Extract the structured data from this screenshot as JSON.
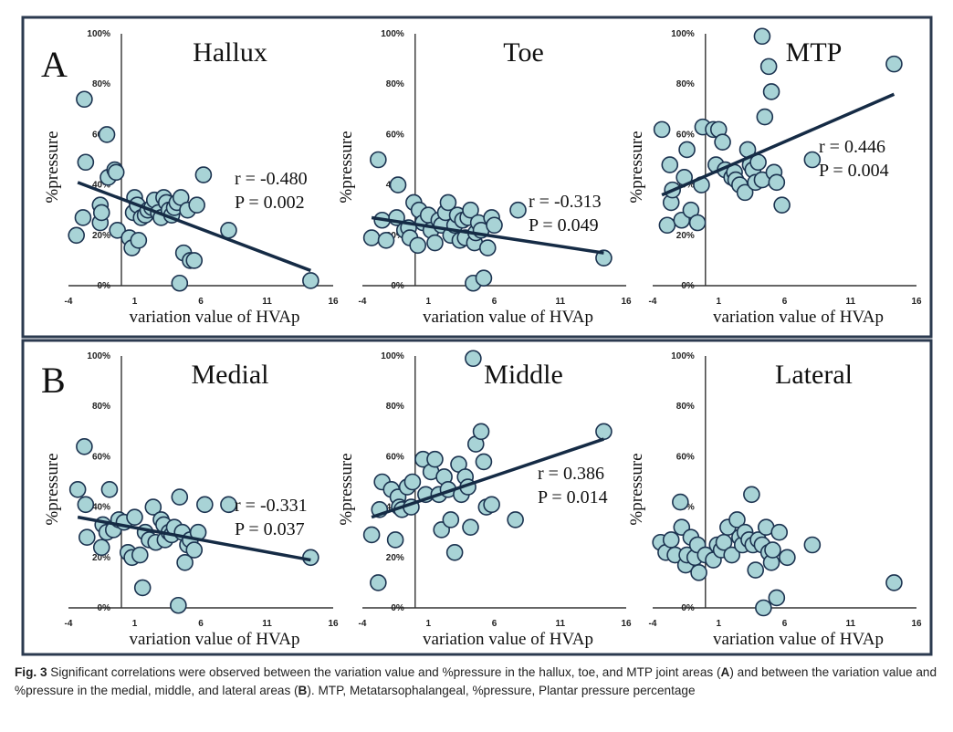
{
  "caption": {
    "fig_label": "Fig. 3",
    "text_1": "  Significant correlations were observed between the variation value and %pressure in the hallux, toe, and MTP joint areas (",
    "ref_a": "A",
    "text_2": ") and between the variation value and %pressure in the medial, middle, and lateral areas (",
    "ref_b": "B",
    "text_3": "). MTP, Metatarsophalangeal, %pressure, Plantar pressure percentage"
  },
  "panel_letters": [
    "A",
    "B"
  ],
  "colors": {
    "marker_fill": "#a8d3d6",
    "marker_edge": "#1c3350",
    "line": "#152b45",
    "frame": "#2b3a4f"
  },
  "chart_data": [
    {
      "type": "scatter",
      "title": "Hallux",
      "panel": "A",
      "xlabel": "variation value of HVAp",
      "ylabel": "%pressure",
      "xlim": [
        -4,
        16
      ],
      "ylim": [
        0,
        100
      ],
      "xticks": [
        "-4",
        "1",
        "6",
        "11",
        "16"
      ],
      "yticks": [
        "0%",
        "20%",
        "40%",
        "60%",
        "80%",
        "100%"
      ],
      "r_text": "r = -0.480",
      "p_text": "P = 0.002",
      "fit": {
        "x": [
          -3.3,
          14.3
        ],
        "y": [
          41,
          6
        ]
      },
      "points": [
        [
          -3.4,
          20
        ],
        [
          -2.9,
          27
        ],
        [
          -2.8,
          74
        ],
        [
          -2.7,
          49
        ],
        [
          -1.6,
          25
        ],
        [
          -1.6,
          32
        ],
        [
          -1.5,
          29
        ],
        [
          -1.1,
          60
        ],
        [
          -1.0,
          43
        ],
        [
          -0.5,
          46
        ],
        [
          -0.4,
          45
        ],
        [
          -0.3,
          22
        ],
        [
          0.6,
          19
        ],
        [
          0.8,
          15
        ],
        [
          0.9,
          29
        ],
        [
          1.0,
          35
        ],
        [
          1.2,
          32
        ],
        [
          1.3,
          18
        ],
        [
          1.5,
          27
        ],
        [
          1.8,
          28
        ],
        [
          2.0,
          30
        ],
        [
          2.3,
          31
        ],
        [
          2.5,
          34
        ],
        [
          2.8,
          29
        ],
        [
          3.0,
          27
        ],
        [
          3.2,
          35
        ],
        [
          3.4,
          33
        ],
        [
          3.6,
          30
        ],
        [
          3.8,
          28
        ],
        [
          4.0,
          31
        ],
        [
          4.2,
          33
        ],
        [
          4.4,
          1
        ],
        [
          4.5,
          35
        ],
        [
          4.7,
          13
        ],
        [
          5.0,
          30
        ],
        [
          5.2,
          10
        ],
        [
          5.5,
          10
        ],
        [
          5.7,
          32
        ],
        [
          6.2,
          44
        ],
        [
          8.1,
          22
        ],
        [
          14.3,
          2
        ]
      ]
    },
    {
      "type": "scatter",
      "title": "Toe",
      "panel": "A",
      "xlabel": "variation value of HVAp",
      "ylabel": "%pressure",
      "xlim": [
        -4,
        16
      ],
      "ylim": [
        0,
        100
      ],
      "xticks": [
        "-4",
        "1",
        "6",
        "11",
        "16"
      ],
      "yticks": [
        "0%",
        "20%",
        "40%",
        "60%",
        "80%",
        "100%"
      ],
      "r_text": "r = -0.313",
      "p_text": "P = 0.049",
      "fit": {
        "x": [
          -3.3,
          14.3
        ],
        "y": [
          27,
          13
        ]
      },
      "points": [
        [
          -3.3,
          19
        ],
        [
          -2.8,
          50
        ],
        [
          -2.5,
          26
        ],
        [
          -2.2,
          18
        ],
        [
          -1.4,
          27
        ],
        [
          -1.3,
          40
        ],
        [
          -0.8,
          22
        ],
        [
          -0.5,
          23
        ],
        [
          -0.4,
          19
        ],
        [
          -0.1,
          33
        ],
        [
          0.2,
          16
        ],
        [
          0.3,
          30
        ],
        [
          0.6,
          25
        ],
        [
          1.0,
          28
        ],
        [
          1.2,
          22
        ],
        [
          1.5,
          17
        ],
        [
          1.8,
          26
        ],
        [
          2.0,
          24
        ],
        [
          2.3,
          29
        ],
        [
          2.5,
          33
        ],
        [
          2.7,
          20
        ],
        [
          3.0,
          24
        ],
        [
          3.2,
          28
        ],
        [
          3.4,
          18
        ],
        [
          3.6,
          26
        ],
        [
          3.8,
          19
        ],
        [
          4.0,
          27
        ],
        [
          4.2,
          30
        ],
        [
          4.4,
          1
        ],
        [
          4.5,
          17
        ],
        [
          4.6,
          21
        ],
        [
          4.8,
          25
        ],
        [
          5.0,
          22
        ],
        [
          5.2,
          3
        ],
        [
          5.5,
          15
        ],
        [
          5.8,
          27
        ],
        [
          6.0,
          24
        ],
        [
          7.8,
          30
        ],
        [
          14.3,
          11
        ]
      ]
    },
    {
      "type": "scatter",
      "title": "MTP",
      "panel": "A",
      "xlabel": "variation value of HVAp",
      "ylabel": "%pressure",
      "xlim": [
        -4,
        16
      ],
      "ylim": [
        0,
        100
      ],
      "xticks": [
        "-4",
        "1",
        "6",
        "11",
        "16"
      ],
      "yticks": [
        "0%",
        "20%",
        "40%",
        "60%",
        "80%",
        "100%"
      ],
      "r_text": "r = 0.446",
      "p_text": "P = 0.004",
      "fit": {
        "x": [
          -3.3,
          14.3
        ],
        "y": [
          36,
          76
        ]
      },
      "points": [
        [
          -3.3,
          62
        ],
        [
          -2.9,
          24
        ],
        [
          -2.7,
          48
        ],
        [
          -2.6,
          33
        ],
        [
          -2.5,
          38
        ],
        [
          -1.8,
          26
        ],
        [
          -1.6,
          43
        ],
        [
          -1.4,
          54
        ],
        [
          -1.1,
          30
        ],
        [
          -0.6,
          25
        ],
        [
          -0.3,
          40
        ],
        [
          -0.2,
          63
        ],
        [
          0.6,
          62
        ],
        [
          0.8,
          48
        ],
        [
          1.0,
          62
        ],
        [
          1.3,
          57
        ],
        [
          1.5,
          46
        ],
        [
          2.0,
          43
        ],
        [
          2.2,
          45
        ],
        [
          2.3,
          42
        ],
        [
          2.6,
          40
        ],
        [
          3.0,
          37
        ],
        [
          3.2,
          54
        ],
        [
          3.4,
          48
        ],
        [
          3.6,
          46
        ],
        [
          3.8,
          41
        ],
        [
          4.0,
          49
        ],
        [
          4.3,
          42
        ],
        [
          4.5,
          67
        ],
        [
          4.8,
          87
        ],
        [
          5.0,
          77
        ],
        [
          5.2,
          45
        ],
        [
          5.4,
          41
        ],
        [
          5.8,
          32
        ],
        [
          4.3,
          99
        ],
        [
          8.1,
          50
        ],
        [
          14.3,
          88
        ]
      ]
    },
    {
      "type": "scatter",
      "title": "Medial",
      "panel": "B",
      "xlabel": "variation value of HVAp",
      "ylabel": "%pressure",
      "xlim": [
        -4,
        16
      ],
      "ylim": [
        0,
        100
      ],
      "xticks": [
        "-4",
        "1",
        "6",
        "11",
        "16"
      ],
      "yticks": [
        "0%",
        "20%",
        "40%",
        "60%",
        "80%",
        "100%"
      ],
      "r_text": "r = -0.331",
      "p_text": "P = 0.037",
      "fit": {
        "x": [
          -3.3,
          14.3
        ],
        "y": [
          36,
          19
        ]
      },
      "points": [
        [
          -3.3,
          47
        ],
        [
          -2.8,
          64
        ],
        [
          -2.7,
          41
        ],
        [
          -2.6,
          28
        ],
        [
          -1.5,
          24
        ],
        [
          -1.4,
          33
        ],
        [
          -1.1,
          30
        ],
        [
          -0.9,
          47
        ],
        [
          -0.6,
          31
        ],
        [
          -0.2,
          35
        ],
        [
          0.2,
          34
        ],
        [
          0.5,
          22
        ],
        [
          0.8,
          20
        ],
        [
          1.0,
          36
        ],
        [
          1.4,
          21
        ],
        [
          1.6,
          8
        ],
        [
          1.8,
          30
        ],
        [
          2.1,
          27
        ],
        [
          2.4,
          40
        ],
        [
          2.6,
          26
        ],
        [
          3.0,
          35
        ],
        [
          3.2,
          33
        ],
        [
          3.3,
          27
        ],
        [
          3.6,
          30
        ],
        [
          3.8,
          29
        ],
        [
          4.0,
          32
        ],
        [
          4.3,
          1
        ],
        [
          4.4,
          44
        ],
        [
          4.6,
          30
        ],
        [
          4.8,
          18
        ],
        [
          5.0,
          25
        ],
        [
          5.2,
          27
        ],
        [
          5.5,
          23
        ],
        [
          5.8,
          30
        ],
        [
          6.3,
          41
        ],
        [
          8.1,
          41
        ],
        [
          14.3,
          20
        ]
      ]
    },
    {
      "type": "scatter",
      "title": "Middle",
      "panel": "B",
      "xlabel": "variation value of HVAp",
      "ylabel": "%pressure",
      "xlim": [
        -4,
        16
      ],
      "ylim": [
        0,
        100
      ],
      "xticks": [
        "-4",
        "1",
        "6",
        "11",
        "16"
      ],
      "yticks": [
        "0%",
        "20%",
        "40%",
        "60%",
        "80%",
        "100%"
      ],
      "r_text": "r = 0.386",
      "p_text": "P = 0.014",
      "fit": {
        "x": [
          -3.3,
          14.3
        ],
        "y": [
          36,
          67
        ]
      },
      "points": [
        [
          -3.3,
          29
        ],
        [
          -2.8,
          10
        ],
        [
          -2.7,
          39
        ],
        [
          -2.5,
          50
        ],
        [
          -1.8,
          47
        ],
        [
          -1.5,
          27
        ],
        [
          -1.3,
          44
        ],
        [
          -1.2,
          40
        ],
        [
          -1.0,
          39
        ],
        [
          -0.6,
          48
        ],
        [
          -0.3,
          40
        ],
        [
          -0.2,
          50
        ],
        [
          0.6,
          59
        ],
        [
          0.8,
          45
        ],
        [
          1.2,
          54
        ],
        [
          1.5,
          59
        ],
        [
          1.8,
          45
        ],
        [
          2.0,
          31
        ],
        [
          2.2,
          52
        ],
        [
          2.5,
          47
        ],
        [
          2.7,
          35
        ],
        [
          3.0,
          22
        ],
        [
          3.3,
          57
        ],
        [
          3.5,
          45
        ],
        [
          3.8,
          52
        ],
        [
          4.0,
          48
        ],
        [
          4.2,
          32
        ],
        [
          4.4,
          99
        ],
        [
          4.6,
          65
        ],
        [
          5.0,
          70
        ],
        [
          5.2,
          58
        ],
        [
          5.4,
          40
        ],
        [
          5.8,
          41
        ],
        [
          7.6,
          35
        ],
        [
          14.3,
          70
        ]
      ]
    },
    {
      "type": "scatter",
      "title": "Lateral",
      "panel": "B",
      "xlabel": "variation value of HVAp",
      "ylabel": "%pressure",
      "xlim": [
        -4,
        16
      ],
      "ylim": [
        0,
        100
      ],
      "xticks": [
        "-4",
        "1",
        "6",
        "11",
        "16"
      ],
      "yticks": [
        "0%",
        "20%",
        "40%",
        "60%",
        "80%",
        "100%"
      ],
      "r_text": "",
      "p_text": "",
      "fit": null,
      "points": [
        [
          -3.4,
          26
        ],
        [
          -3.0,
          22
        ],
        [
          -2.6,
          27
        ],
        [
          -2.3,
          21
        ],
        [
          -1.9,
          42
        ],
        [
          -1.8,
          32
        ],
        [
          -1.5,
          17
        ],
        [
          -1.4,
          21
        ],
        [
          -1.1,
          28
        ],
        [
          -0.8,
          20
        ],
        [
          -0.6,
          25
        ],
        [
          -0.5,
          14
        ],
        [
          0.0,
          21
        ],
        [
          0.6,
          19
        ],
        [
          0.9,
          25
        ],
        [
          1.2,
          23
        ],
        [
          1.4,
          26
        ],
        [
          1.7,
          32
        ],
        [
          2.0,
          21
        ],
        [
          2.4,
          35
        ],
        [
          2.6,
          28
        ],
        [
          2.8,
          25
        ],
        [
          3.0,
          30
        ],
        [
          3.3,
          27
        ],
        [
          3.5,
          45
        ],
        [
          3.6,
          25
        ],
        [
          3.8,
          15
        ],
        [
          4.0,
          27
        ],
        [
          4.3,
          25
        ],
        [
          4.4,
          0
        ],
        [
          4.6,
          32
        ],
        [
          4.8,
          22
        ],
        [
          5.0,
          18
        ],
        [
          5.1,
          23
        ],
        [
          5.4,
          4
        ],
        [
          5.6,
          30
        ],
        [
          6.2,
          20
        ],
        [
          8.1,
          25
        ],
        [
          14.3,
          10
        ]
      ]
    }
  ]
}
